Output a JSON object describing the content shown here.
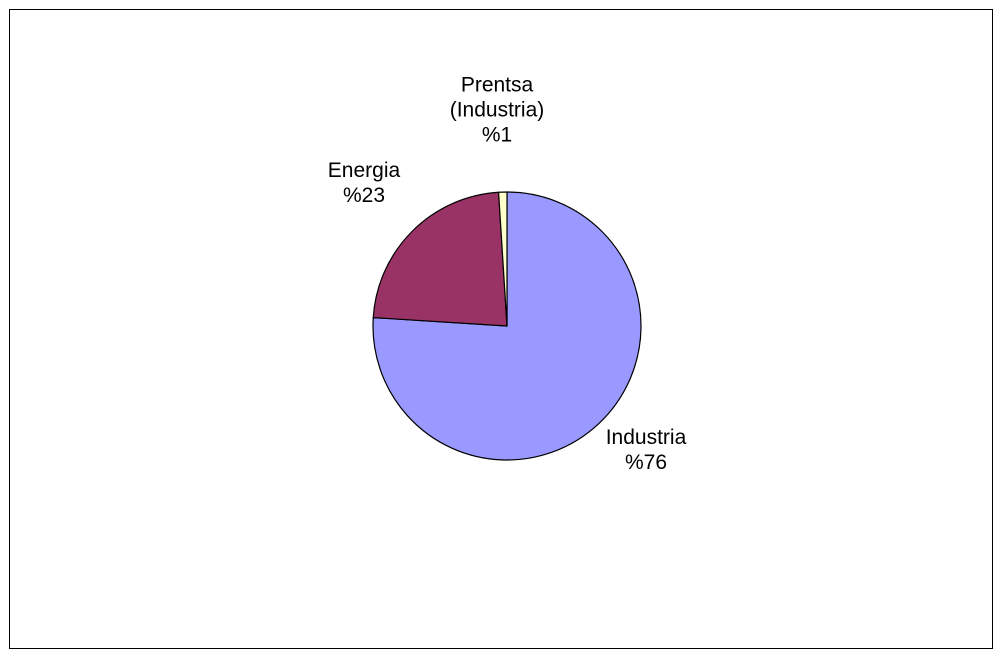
{
  "chart_data": {
    "type": "pie",
    "title": "",
    "slices": [
      {
        "name": "Industria",
        "label": "Industria",
        "value_label": "%76",
        "value": 76,
        "color": "#9999ff"
      },
      {
        "name": "Energia",
        "label": "Energia",
        "value_label": "%23",
        "value": 23,
        "color": "#993366"
      },
      {
        "name": "Prentsa (Industria)",
        "label": "Prentsa\n(Industria)",
        "value_label": "%1",
        "value": 1,
        "color": "#ffffcc"
      }
    ],
    "start_angle_deg": 0,
    "direction": "clockwise",
    "legend": "none"
  }
}
